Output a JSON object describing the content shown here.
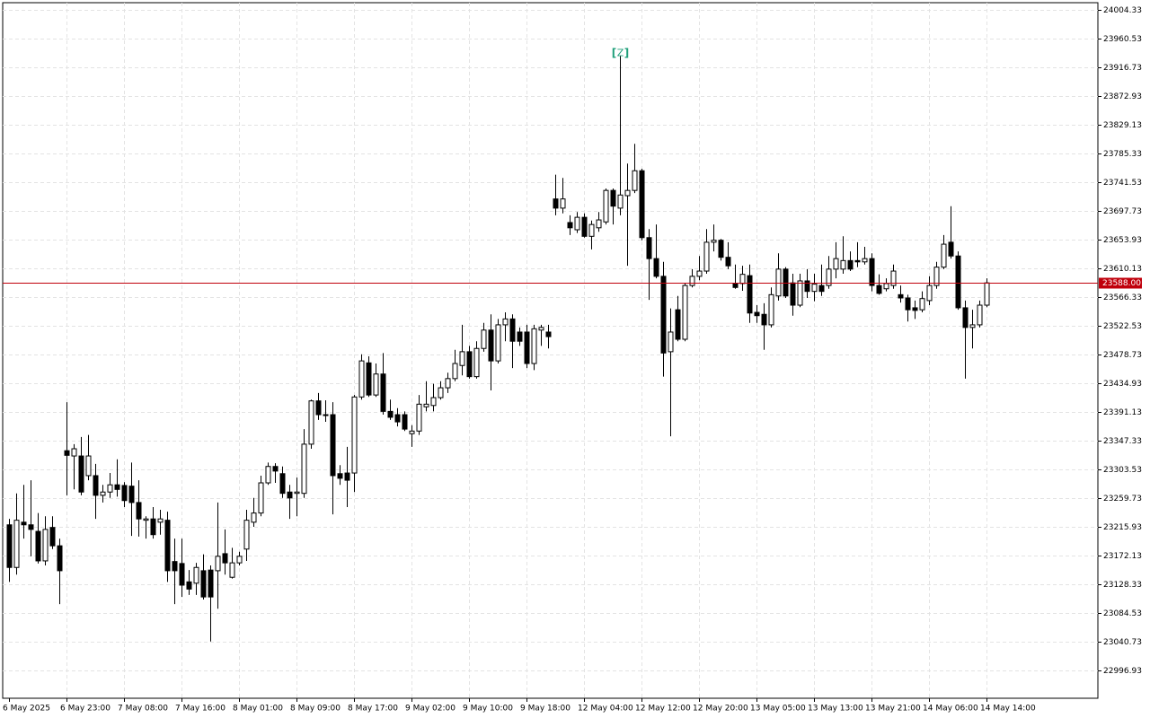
{
  "chart_data": {
    "type": "candlestick",
    "categories": [
      "6 May 2025",
      null,
      null,
      null,
      null,
      null,
      null,
      null,
      "6 May 23:00",
      null,
      null,
      null,
      null,
      null,
      null,
      null,
      "7 May 08:00",
      null,
      null,
      null,
      null,
      null,
      null,
      null,
      "7 May 16:00",
      null,
      null,
      null,
      null,
      null,
      null,
      null,
      "8 May 01:00",
      null,
      null,
      null,
      null,
      null,
      null,
      null,
      "8 May 09:00",
      null,
      null,
      null,
      null,
      null,
      null,
      null,
      "8 May 17:00",
      null,
      null,
      null,
      null,
      null,
      null,
      null,
      "9 May 02:00",
      null,
      null,
      null,
      null,
      null,
      null,
      null,
      "9 May 10:00",
      null,
      null,
      null,
      null,
      null,
      null,
      null,
      "9 May 18:00",
      null,
      null,
      null,
      null,
      null,
      null,
      null,
      "12 May 04:00",
      null,
      null,
      null,
      null,
      null,
      null,
      null,
      "12 May 12:00",
      null,
      null,
      null,
      null,
      null,
      null,
      null,
      "12 May 20:00",
      null,
      null,
      null,
      null,
      null,
      null,
      null,
      "13 May 05:00",
      null,
      null,
      null,
      null,
      null,
      null,
      null,
      "13 May 13:00",
      null,
      null,
      null,
      null,
      null,
      null,
      null,
      "13 May 21:00",
      null,
      null,
      null,
      null,
      null,
      null,
      null,
      "14 May 06:00",
      null,
      null,
      null,
      null,
      null,
      null,
      null,
      "14 May 14:00"
    ],
    "open": [
      23219,
      23154,
      23223,
      23219,
      23209,
      23164,
      23215,
      23187,
      23332,
      23324,
      23324,
      23294,
      23294,
      23264,
      23269,
      23280,
      23279,
      23278,
      23253,
      23226,
      23228,
      23223,
      23226,
      23163,
      23160,
      23132,
      23130,
      23149,
      23150,
      23149,
      23175,
      23139,
      23161,
      23182,
      23223,
      23237,
      23283,
      23308,
      23297,
      23269,
      23267,
      23267,
      23342,
      23408,
      23387,
      23387,
      23297,
      23298,
      23298,
      23414,
      23466,
      23417,
      23449,
      23392,
      23387,
      23387,
      23358,
      23362,
      23399,
      23401,
      23413,
      23428,
      23442,
      23462,
      23483,
      23445,
      23488,
      23516,
      23469,
      23524,
      23533,
      23513,
      23513,
      23465,
      23516,
      23513,
      23716,
      23702,
      23680,
      23669,
      23688,
      23659,
      23672,
      23681,
      23729,
      23702,
      23721,
      23729,
      23759,
      23657,
      23625,
      23598,
      23483,
      23547,
      23502,
      23584,
      23598,
      23606,
      23650,
      23653,
      23627,
      23587,
      23587,
      23599,
      23543,
      23540,
      23524,
      23568,
      23609,
      23588,
      23554,
      23591,
      23575,
      23584,
      23584,
      23609,
      23609,
      23622,
      23622,
      23620,
      23625,
      23584,
      23579,
      23584,
      23570,
      23565,
      23550,
      23547,
      23561,
      23584,
      23612,
      23650,
      23629,
      23550,
      23520,
      23524,
      23554
    ],
    "high": [
      23228,
      23267,
      23280,
      23287,
      23237,
      23232,
      23232,
      23198,
      23406,
      23342,
      23353,
      23356,
      23312,
      23280,
      23298,
      23319,
      23284,
      23314,
      23287,
      23232,
      23246,
      23242,
      23239,
      23198,
      23198,
      23150,
      23161,
      23174,
      23157,
      23253,
      23212,
      23184,
      23178,
      23242,
      23260,
      23294,
      23314,
      23313,
      23308,
      23280,
      23291,
      23365,
      23410,
      23420,
      23409,
      23406,
      23310,
      23338,
      23417,
      23479,
      23476,
      23465,
      23481,
      23410,
      23397,
      23392,
      23371,
      23417,
      23438,
      23434,
      23438,
      23451,
      23486,
      23524,
      23492,
      23499,
      23527,
      23540,
      23533,
      23543,
      23540,
      23520,
      23524,
      23524,
      23524,
      23524,
      23753,
      23748,
      23691,
      23696,
      23694,
      23683,
      23696,
      23732,
      23732,
      23934,
      23770,
      23800,
      23762,
      23670,
      23677,
      23620,
      23549,
      23568,
      23588,
      23609,
      23629,
      23670,
      23677,
      23655,
      23650,
      23616,
      23614,
      23616,
      23554,
      23557,
      23581,
      23633,
      23612,
      23602,
      23602,
      23609,
      23602,
      23616,
      23629,
      23650,
      23659,
      23636,
      23650,
      23643,
      23633,
      23601,
      23595,
      23616,
      23584,
      23570,
      23561,
      23575,
      23598,
      23620,
      23661,
      23705,
      23636,
      23561,
      23547,
      23561,
      23595
    ],
    "low": [
      23132,
      23143,
      23198,
      23171,
      23160,
      23157,
      23182,
      23098,
      23264,
      23273,
      23264,
      23287,
      23228,
      23253,
      23260,
      23262,
      23246,
      23202,
      23201,
      23198,
      23198,
      23204,
      23132,
      23098,
      23109,
      23112,
      23112,
      23105,
      23041,
      23091,
      23143,
      23137,
      23157,
      23164,
      23216,
      23232,
      23280,
      23283,
      23260,
      23228,
      23232,
      23260,
      23335,
      23379,
      23376,
      23235,
      23280,
      23246,
      23269,
      23410,
      23414,
      23414,
      23387,
      23379,
      23369,
      23362,
      23338,
      23356,
      23392,
      23392,
      23410,
      23420,
      23438,
      23447,
      23442,
      23442,
      23483,
      23424,
      23465,
      23499,
      23458,
      23492,
      23458,
      23455,
      23492,
      23488,
      23691,
      23694,
      23661,
      23664,
      23657,
      23639,
      23666,
      23677,
      23677,
      23691,
      23614,
      23725,
      23653,
      23562,
      23595,
      23445,
      23354,
      23499,
      23499,
      23581,
      23592,
      23602,
      23636,
      23622,
      23609,
      23579,
      23576,
      23527,
      23527,
      23486,
      23520,
      23561,
      23565,
      23538,
      23551,
      23565,
      23560,
      23568,
      23579,
      23595,
      23602,
      23606,
      23612,
      23616,
      23575,
      23570,
      23575,
      23579,
      23558,
      23529,
      23533,
      23543,
      23554,
      23579,
      23609,
      23625,
      23547,
      23442,
      23488,
      23520,
      23551
    ],
    "close": [
      23154,
      23226,
      23219,
      23212,
      23164,
      23212,
      23187,
      23149,
      23325,
      23335,
      23269,
      23324,
      23264,
      23269,
      23280,
      23273,
      23256,
      23253,
      23228,
      23228,
      23204,
      23228,
      23149,
      23149,
      23127,
      23121,
      23154,
      23109,
      23109,
      23171,
      23161,
      23161,
      23171,
      23226,
      23237,
      23283,
      23308,
      23301,
      23267,
      23260,
      23269,
      23342,
      23408,
      23387,
      23386,
      23294,
      23290,
      23287,
      23414,
      23469,
      23417,
      23449,
      23392,
      23383,
      23376,
      23365,
      23362,
      23403,
      23403,
      23413,
      23428,
      23442,
      23465,
      23483,
      23445,
      23488,
      23516,
      23469,
      23524,
      23533,
      23499,
      23499,
      23465,
      23518,
      23520,
      23506,
      23702,
      23716,
      23672,
      23688,
      23659,
      23677,
      23684,
      23729,
      23705,
      23722,
      23729,
      23759,
      23657,
      23625,
      23598,
      23481,
      23513,
      23502,
      23584,
      23598,
      23606,
      23650,
      23653,
      23627,
      23614,
      23581,
      23601,
      23542,
      23538,
      23524,
      23570,
      23609,
      23568,
      23554,
      23591,
      23575,
      23586,
      23575,
      23609,
      23625,
      23622,
      23609,
      23620,
      23625,
      23584,
      23572,
      23587,
      23606,
      23565,
      23547,
      23546,
      23564,
      23584,
      23612,
      23647,
      23629,
      23550,
      23520,
      23524,
      23554,
      23588
    ],
    "ylim": [
      22954.5,
      24015.3
    ],
    "yticks": [
      24004.33,
      23960.53,
      23916.73,
      23872.93,
      23829.13,
      23785.33,
      23741.53,
      23697.73,
      23653.93,
      23610.13,
      23566.33,
      23522.53,
      23478.73,
      23434.93,
      23391.13,
      23347.33,
      23303.53,
      23259.73,
      23215.93,
      23172.13,
      23128.33,
      23084.53,
      23040.73,
      22996.93
    ],
    "current_price": {
      "value": 23588,
      "label": "23588.00"
    },
    "annotation": {
      "text": "Z",
      "index": 85
    },
    "grid": true,
    "up_color": "#ffffff",
    "down_color": "#000000",
    "price_line_color": "#c0000b",
    "annotation_color": "#1f9f7a"
  }
}
